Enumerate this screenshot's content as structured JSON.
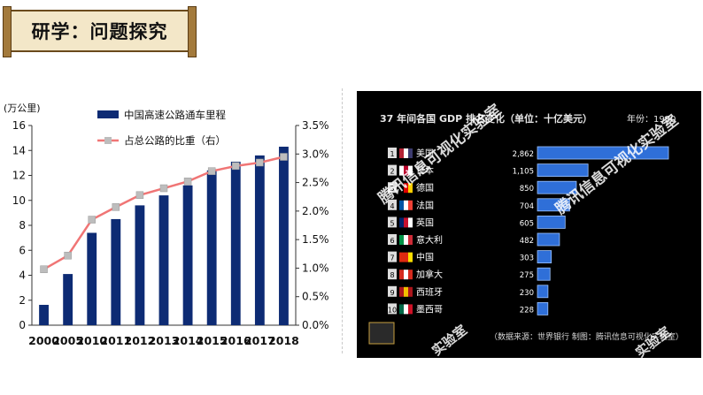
{
  "header": {
    "title": "研学：问题探究"
  },
  "chart_data": [
    {
      "type": "bar",
      "categories": [
        "2000",
        "2005",
        "2010",
        "2011",
        "2012",
        "2013",
        "2014",
        "2015",
        "2016",
        "2017",
        "2018"
      ],
      "series": [
        {
          "name": "中国高速公路通车里程",
          "type": "bar",
          "axis": "left",
          "values": [
            1.63,
            4.1,
            7.4,
            8.5,
            9.6,
            10.4,
            11.2,
            12.4,
            13.1,
            13.6,
            14.3
          ]
        },
        {
          "name": "占总公路的比重（右）",
          "type": "line",
          "axis": "right",
          "values": [
            0.98,
            1.22,
            1.85,
            2.07,
            2.28,
            2.4,
            2.52,
            2.7,
            2.79,
            2.85,
            2.95
          ]
        }
      ],
      "ylabel": "(万公里)",
      "ylim": [
        0,
        16
      ],
      "y2lim": [
        0,
        3.5
      ],
      "yticks": [
        "0",
        "2",
        "4",
        "6",
        "8",
        "10",
        "12",
        "14",
        "16"
      ],
      "y2ticks": [
        "0.0%",
        "0.5%",
        "1.0%",
        "1.5%",
        "2.0%",
        "2.5%",
        "3.0%",
        "3.5%"
      ],
      "legend_position": "top",
      "colors": {
        "bar": "#0d2b74",
        "line": "#f07575",
        "marker": "#bdbdbd"
      }
    },
    {
      "type": "bar",
      "title": "37 年间各国 GDP 排名变化（单位：十亿美元）",
      "year_label": "年份：1980",
      "categories": [
        "美国",
        "日本",
        "德国",
        "法国",
        "英国",
        "意大利",
        "中国",
        "加拿大",
        "西班牙",
        "墨西哥"
      ],
      "ranks": [
        "1",
        "2",
        "3",
        "4",
        "5",
        "6",
        "7",
        "8",
        "9",
        "10"
      ],
      "value_labels": [
        "2,862",
        "1,105",
        "850",
        "704",
        "605",
        "482",
        "303",
        "275",
        "230",
        "228"
      ],
      "values": [
        2862,
        1105,
        850,
        704,
        605,
        482,
        303,
        275,
        230,
        228
      ],
      "source": "（数据来源：世界银行 制图：腾讯信息可视化实验室）",
      "watermarks": [
        "腾讯信息可视化实验室",
        "腾讯信息可视化实验室",
        "实验室",
        "实验室"
      ],
      "colors": {
        "background": "#000000",
        "bar": "#2f6fd8",
        "bar_edge": "#9cc3ff"
      }
    }
  ]
}
